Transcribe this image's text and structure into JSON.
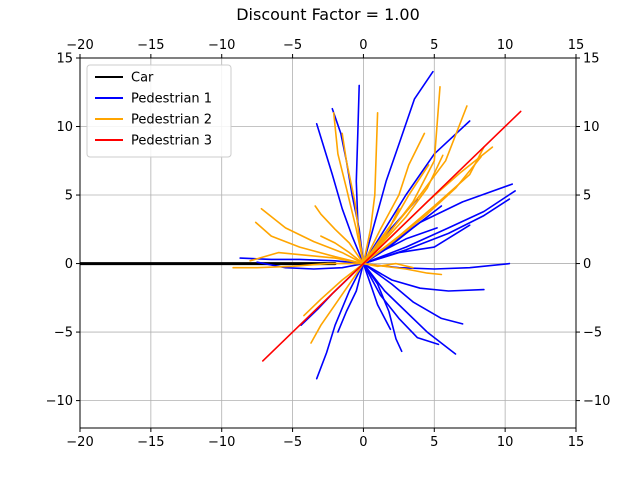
{
  "chart_data": {
    "type": "line",
    "title": "Discount Factor = 1.00",
    "xlabel": "",
    "ylabel": "",
    "xlim": [
      -20,
      15
    ],
    "ylim": [
      -12,
      15
    ],
    "xticks": [
      -20,
      -15,
      -10,
      -5,
      0,
      5,
      10,
      15
    ],
    "yticks": [
      -10,
      -5,
      0,
      5,
      10,
      15
    ],
    "x_tick_labels": [
      "−20",
      "−15",
      "−10",
      "−5",
      "0",
      "5",
      "10",
      "15"
    ],
    "y_tick_labels": [
      "−10",
      "−5",
      "0",
      "5",
      "10",
      "15"
    ],
    "grid": true,
    "legend_position": "top-left",
    "series": [
      {
        "name": "Car",
        "color": "#000000",
        "lines": [
          [
            [
              -20,
              0
            ],
            [
              -2,
              0
            ]
          ]
        ]
      },
      {
        "name": "Pedestrian 1",
        "color": "#0000ff",
        "lines": [
          [
            [
              0,
              0
            ],
            [
              0.8,
              3
            ],
            [
              1.6,
              6
            ],
            [
              2.6,
              9
            ],
            [
              3.6,
              12
            ],
            [
              4.9,
              14
            ]
          ],
          [
            [
              0,
              0
            ],
            [
              1.5,
              2.5
            ],
            [
              3,
              5
            ],
            [
              5,
              8
            ],
            [
              7.5,
              10.4
            ]
          ],
          [
            [
              0,
              0
            ],
            [
              2,
              1.5
            ],
            [
              4,
              3
            ],
            [
              7,
              4.5
            ],
            [
              10.5,
              5.8
            ]
          ],
          [
            [
              0,
              0
            ],
            [
              3,
              1.2
            ],
            [
              6,
              2.6
            ],
            [
              8.5,
              3.8
            ],
            [
              10.7,
              5.3
            ]
          ],
          [
            [
              0,
              0
            ],
            [
              3,
              1
            ],
            [
              6,
              2.2
            ],
            [
              8.5,
              3.5
            ],
            [
              10.3,
              4.7
            ]
          ],
          [
            [
              0,
              0
            ],
            [
              2.5,
              -0.3
            ],
            [
              5,
              -0.4
            ],
            [
              7.5,
              -0.3
            ],
            [
              10.3,
              0
            ]
          ],
          [
            [
              0,
              0
            ],
            [
              2,
              -1.2
            ],
            [
              4,
              -1.8
            ],
            [
              6,
              -2
            ],
            [
              8.5,
              -1.9
            ]
          ],
          [
            [
              0,
              0
            ],
            [
              2,
              -1.5
            ],
            [
              3.5,
              -2.8
            ],
            [
              5.5,
              -4
            ],
            [
              7,
              -4.4
            ]
          ],
          [
            [
              0,
              0
            ],
            [
              1.5,
              -2
            ],
            [
              3,
              -3.5
            ],
            [
              4.5,
              -5
            ],
            [
              6.5,
              -6.6
            ]
          ],
          [
            [
              0,
              0
            ],
            [
              1.2,
              -2.3
            ],
            [
              2.5,
              -4
            ],
            [
              3.8,
              -5.4
            ],
            [
              5.3,
              -5.9
            ]
          ],
          [
            [
              0,
              0
            ],
            [
              1,
              -1.5
            ],
            [
              1.8,
              -3.5
            ],
            [
              2.3,
              -5.5
            ],
            [
              2.7,
              -6.4
            ]
          ],
          [
            [
              0,
              0
            ],
            [
              0.5,
              -1.5
            ],
            [
              1,
              -3
            ],
            [
              1.5,
              -4
            ],
            [
              1.9,
              -4.8
            ]
          ],
          [
            [
              0,
              0
            ],
            [
              -0.5,
              -2
            ],
            [
              -1.2,
              -3.5
            ],
            [
              -1.8,
              -5
            ]
          ],
          [
            [
              0,
              0
            ],
            [
              -1,
              -2
            ],
            [
              -2,
              -4.5
            ],
            [
              -2.6,
              -6.5
            ],
            [
              -3.3,
              -8.4
            ]
          ],
          [
            [
              0,
              0
            ],
            [
              -1,
              -1
            ],
            [
              -2.2,
              -2.2
            ],
            [
              -3.2,
              -3.3
            ],
            [
              -4.4,
              -4.5
            ]
          ],
          [
            [
              0,
              0
            ],
            [
              -1.5,
              -0.3
            ],
            [
              -3.5,
              -0.4
            ],
            [
              -5.5,
              -0.3
            ],
            [
              -7.5,
              0.1
            ]
          ],
          [
            [
              0,
              0
            ],
            [
              -2,
              0.2
            ],
            [
              -4.5,
              0.3
            ],
            [
              -6.5,
              0.3
            ],
            [
              -8.7,
              0.4
            ]
          ],
          [
            [
              0,
              0
            ],
            [
              -0.8,
              2
            ],
            [
              -1.5,
              4
            ],
            [
              -2.2,
              6.5
            ],
            [
              -3.3,
              10.2
            ]
          ],
          [
            [
              0,
              0
            ],
            [
              -0.3,
              2.5
            ],
            [
              -0.8,
              5
            ],
            [
              -1.2,
              7.5
            ],
            [
              -1.6,
              9.5
            ],
            [
              -2.2,
              11.3
            ]
          ],
          [
            [
              0,
              0
            ],
            [
              -0.4,
              3
            ],
            [
              -0.5,
              6
            ],
            [
              -0.4,
              9.5
            ],
            [
              -0.3,
              13
            ]
          ],
          [
            [
              0,
              0
            ],
            [
              1.5,
              1
            ],
            [
              3,
              1.8
            ],
            [
              5.2,
              2.6
            ]
          ],
          [
            [
              0,
              0
            ],
            [
              2.5,
              0.8
            ],
            [
              5,
              1.2
            ],
            [
              7.5,
              2.8
            ]
          ],
          [
            [
              0,
              0
            ],
            [
              1.2,
              1.7
            ],
            [
              2.5,
              3.2
            ],
            [
              3.8,
              4.7
            ]
          ],
          [
            [
              0,
              0
            ],
            [
              1.8,
              1.2
            ],
            [
              3.5,
              2.6
            ],
            [
              5.5,
              4.2
            ]
          ]
        ]
      },
      {
        "name": "Pedestrian 2",
        "color": "#ffa500",
        "lines": [
          [
            [
              0,
              0
            ],
            [
              -1.5,
              0.8
            ],
            [
              -3.5,
              1.6
            ],
            [
              -5.5,
              2.6
            ],
            [
              -7.2,
              4
            ]
          ],
          [
            [
              0,
              0
            ],
            [
              -2,
              0.5
            ],
            [
              -4.5,
              1.2
            ],
            [
              -6.5,
              2
            ],
            [
              -7.6,
              3
            ]
          ],
          [
            [
              0,
              0
            ],
            [
              -2.5,
              0
            ],
            [
              -5,
              -0.2
            ],
            [
              -7.5,
              -0.3
            ],
            [
              -9.2,
              -0.3
            ]
          ],
          [
            [
              0,
              0
            ],
            [
              -2,
              0.4
            ],
            [
              -4,
              0.6
            ],
            [
              -6,
              0.8
            ],
            [
              -8,
              0.2
            ]
          ],
          [
            [
              0,
              0
            ],
            [
              -1,
              1.5
            ],
            [
              -2,
              2.5
            ],
            [
              -3,
              3.6
            ],
            [
              -3.4,
              4.2
            ]
          ],
          [
            [
              0,
              0
            ],
            [
              -1.5,
              -1.2
            ],
            [
              -3,
              -2.6
            ],
            [
              -4.2,
              -3.8
            ]
          ],
          [
            [
              0,
              0
            ],
            [
              -1,
              -1.5
            ],
            [
              -2,
              -3
            ],
            [
              -3,
              -4.5
            ],
            [
              -3.7,
              -5.8
            ]
          ],
          [
            [
              0,
              0
            ],
            [
              -0.5,
              2.5
            ],
            [
              -1.2,
              5.5
            ],
            [
              -1.8,
              8
            ],
            [
              -2.1,
              11
            ]
          ],
          [
            [
              0,
              0
            ],
            [
              0.5,
              2.5
            ],
            [
              0.8,
              5
            ],
            [
              0.9,
              8
            ],
            [
              1,
              11
            ]
          ],
          [
            [
              0,
              0
            ],
            [
              -0.3,
              2
            ],
            [
              -0.6,
              4.5
            ],
            [
              -1.2,
              7.5
            ],
            [
              -1.5,
              9.5
            ]
          ],
          [
            [
              0,
              0
            ],
            [
              1.2,
              2.5
            ],
            [
              2.5,
              5
            ],
            [
              3.2,
              7.2
            ],
            [
              4.3,
              9.5
            ]
          ],
          [
            [
              0,
              0
            ],
            [
              1.8,
              2.2
            ],
            [
              3.5,
              4.5
            ],
            [
              5,
              7.5
            ],
            [
              5.4,
              12.9
            ]
          ],
          [
            [
              0,
              0
            ],
            [
              2,
              2.5
            ],
            [
              4,
              5
            ],
            [
              5.8,
              7.5
            ],
            [
              7.3,
              11.5
            ]
          ],
          [
            [
              0,
              0
            ],
            [
              2.5,
              2
            ],
            [
              5,
              4.2
            ],
            [
              7.5,
              6.5
            ],
            [
              8.5,
              8.5
            ]
          ],
          [
            [
              0,
              0
            ],
            [
              2.2,
              1.7
            ],
            [
              4.5,
              3.6
            ],
            [
              6.5,
              5.5
            ],
            [
              8.3,
              7.8
            ]
          ],
          [
            [
              0,
              0
            ],
            [
              2.5,
              2.5
            ],
            [
              4.5,
              4.5
            ],
            [
              6.8,
              6.6
            ],
            [
              9.1,
              8.5
            ]
          ],
          [
            [
              0,
              0
            ],
            [
              1.5,
              1.7
            ],
            [
              3,
              3.4
            ],
            [
              4.5,
              5.5
            ],
            [
              5.6,
              7.9
            ]
          ],
          [
            [
              0,
              0
            ],
            [
              1,
              1.5
            ],
            [
              2.2,
              3.2
            ],
            [
              3.2,
              5
            ],
            [
              4.6,
              7.2
            ]
          ],
          [
            [
              0,
              0
            ],
            [
              1.5,
              -0.2
            ],
            [
              3,
              -0.4
            ],
            [
              4.5,
              -0.7
            ],
            [
              5.5,
              -0.8
            ]
          ],
          [
            [
              0,
              0
            ],
            [
              1,
              -0.2
            ],
            [
              2.3,
              0
            ],
            [
              3.5,
              -0.3
            ]
          ],
          [
            [
              0,
              0
            ],
            [
              0.8,
              1
            ],
            [
              1.8,
              2.5
            ],
            [
              2.5,
              4
            ]
          ],
          [
            [
              0,
              0
            ],
            [
              -1,
              0.8
            ],
            [
              -2,
              1.5
            ],
            [
              -3,
              2
            ]
          ]
        ]
      },
      {
        "name": "Pedestrian 3",
        "color": "#ff0000",
        "lines": [
          [
            [
              -7.1,
              -7.1
            ],
            [
              0,
              0
            ],
            [
              11.1,
              11.1
            ]
          ]
        ]
      }
    ]
  }
}
